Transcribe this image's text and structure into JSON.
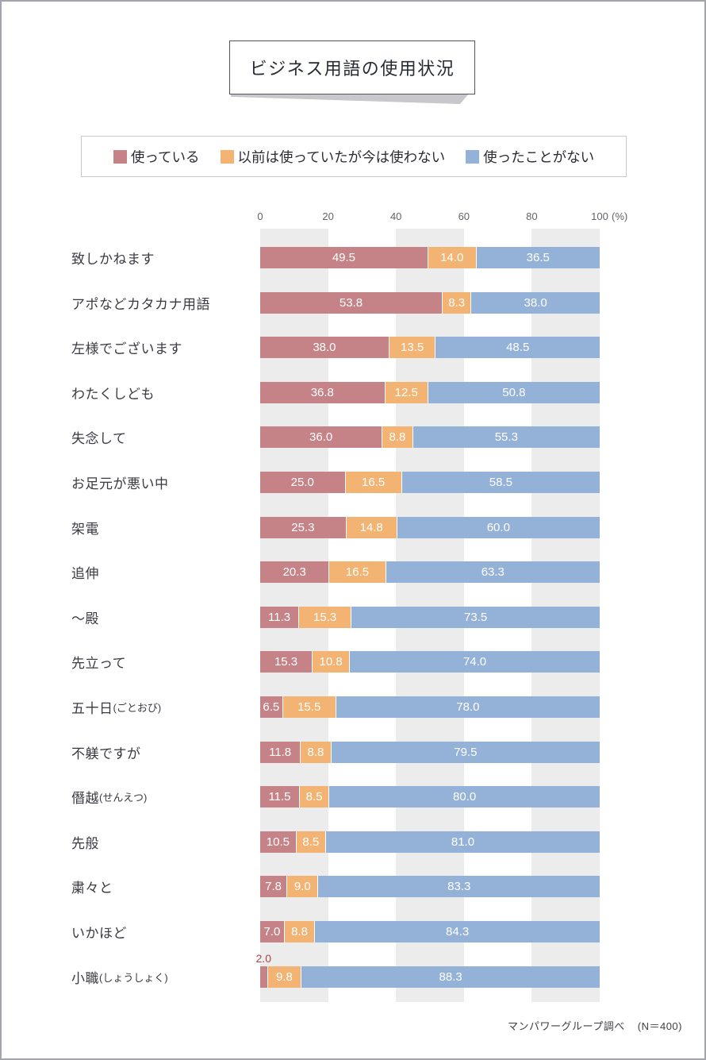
{
  "title": "ビジネス用語の使用状況",
  "legend": {
    "items": [
      {
        "label": "使っている",
        "color": "#c58287"
      },
      {
        "label": "以前は使っていたが今は使わない",
        "color": "#f2b373"
      },
      {
        "label": "使ったことがない",
        "color": "#94b2d8"
      }
    ]
  },
  "axis": {
    "ticks": [
      "0",
      "20",
      "40",
      "60",
      "80",
      "100"
    ],
    "unit": "(%)"
  },
  "chart_data": {
    "type": "bar",
    "orientation": "horizontal",
    "stacked": true,
    "xlim": [
      0,
      100
    ],
    "title": "ビジネス用語の使用状況",
    "series_names": [
      "使っている",
      "以前は使っていたが今は使わない",
      "使ったことがない"
    ],
    "series_colors": [
      "#c58287",
      "#f2b373",
      "#94b2d8"
    ],
    "band_color": "#ececec",
    "rows": [
      {
        "label": "致しかねます",
        "note": "",
        "values": [
          49.5,
          14.0,
          36.5
        ]
      },
      {
        "label": "アポなどカタカナ用語",
        "note": "",
        "values": [
          53.8,
          8.3,
          38.0
        ]
      },
      {
        "label": "左様でございます",
        "note": "",
        "values": [
          38.0,
          13.5,
          48.5
        ]
      },
      {
        "label": "わたくしども",
        "note": "",
        "values": [
          36.8,
          12.5,
          50.8
        ]
      },
      {
        "label": "失念して",
        "note": "",
        "values": [
          36.0,
          8.8,
          55.3
        ]
      },
      {
        "label": "お足元が悪い中",
        "note": "",
        "values": [
          25.0,
          16.5,
          58.5
        ]
      },
      {
        "label": "架電",
        "note": "",
        "values": [
          25.3,
          14.8,
          60.0
        ]
      },
      {
        "label": "追伸",
        "note": "",
        "values": [
          20.3,
          16.5,
          63.3
        ]
      },
      {
        "label": "～殿",
        "note": "",
        "values": [
          11.3,
          15.3,
          73.5
        ]
      },
      {
        "label": "先立って",
        "note": "",
        "values": [
          15.3,
          10.8,
          74.0
        ]
      },
      {
        "label": "五十日",
        "note": "(ごとおび)",
        "values": [
          6.5,
          15.5,
          78.0
        ]
      },
      {
        "label": "不躾ですが",
        "note": "",
        "values": [
          11.8,
          8.8,
          79.5
        ]
      },
      {
        "label": "僭越",
        "note": "(せんえつ)",
        "values": [
          11.5,
          8.5,
          80.0
        ]
      },
      {
        "label": "先般",
        "note": "",
        "values": [
          10.5,
          8.5,
          81.0
        ]
      },
      {
        "label": "粛々と",
        "note": "",
        "values": [
          7.8,
          9.0,
          83.3
        ]
      },
      {
        "label": "いかほど",
        "note": "",
        "values": [
          7.0,
          8.8,
          84.3
        ]
      },
      {
        "label": "小職",
        "note": "(しょうしょく)",
        "values": [
          2.0,
          9.8,
          88.3
        ],
        "first_label_outside": true
      }
    ],
    "outside_label_color": "#b2443f"
  },
  "footer": {
    "source": "マンパワーグループ調べ",
    "sample": "(N＝400)"
  }
}
